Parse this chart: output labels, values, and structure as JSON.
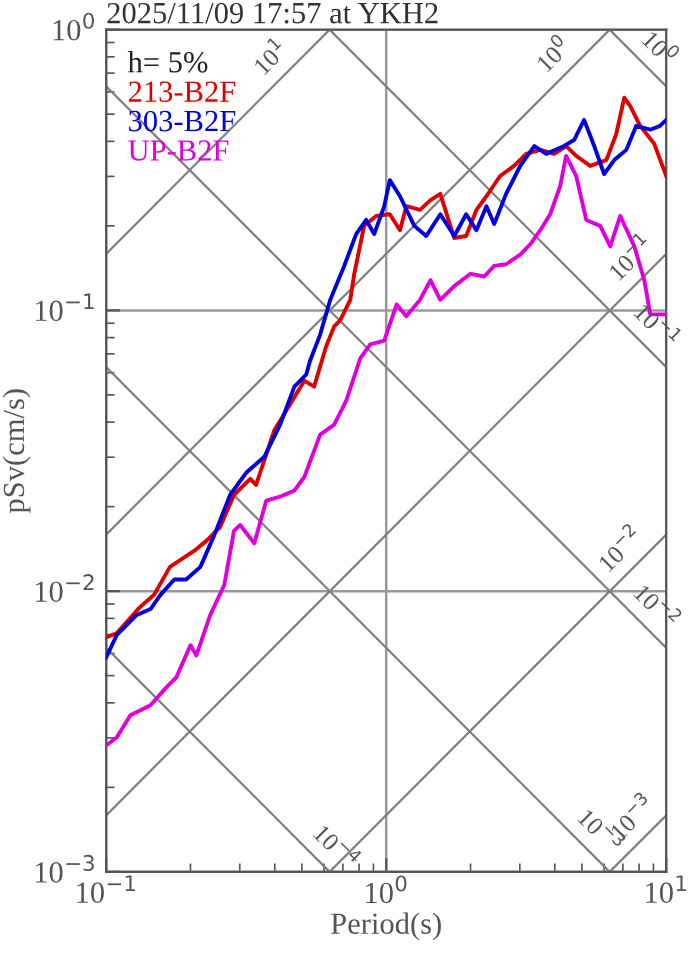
{
  "chart_data": {
    "type": "line",
    "title": "2025/11/09 17:57 at YKH2",
    "xlabel": "Period(s)",
    "ylabel": "pSv(cm/s)",
    "legend_title": "h= 5%",
    "legend": "top left",
    "log": "xy",
    "grid": true,
    "xlim": [
      0.1,
      10
    ],
    "ylim": [
      0.001,
      1
    ],
    "xticks": [
      {
        "value": 0.1,
        "label": "10$^{−1}$"
      },
      {
        "value": 1,
        "label": "10$^{0}$"
      },
      {
        "value": 10,
        "label": "10$^{1}$"
      }
    ],
    "yticks": [
      {
        "value": 0.001,
        "label": "10$^{−3}$"
      },
      {
        "value": 0.01,
        "label": "10$^{−2}$"
      },
      {
        "value": 0.1,
        "label": "10$^{−1}$"
      },
      {
        "value": 1,
        "label": "10$^{0}$"
      }
    ],
    "series": [
      {
        "color": "#808080",
        "x": [
          0.1,
          0.628
        ],
        "values": [
          0.159,
          1
        ]
      },
      {
        "color": "#808080",
        "x": [
          0.1,
          6.28
        ],
        "values": [
          0.0159,
          1
        ]
      },
      {
        "color": "#808080",
        "x": [
          0.1,
          10
        ],
        "values": [
          0.00159,
          0.159
        ]
      },
      {
        "color": "#808080",
        "x": [
          0.628,
          10
        ],
        "values": [
          0.001,
          0.0159
        ]
      },
      {
        "color": "#808080",
        "x": [
          6.28,
          10
        ],
        "values": [
          0.001,
          0.00159
        ]
      },
      {
        "color": "#808080",
        "x": [
          6.28,
          10
        ],
        "values": [
          1,
          0.628
        ]
      },
      {
        "color": "#808080",
        "x": [
          0.628,
          10
        ],
        "values": [
          1,
          0.0628
        ]
      },
      {
        "color": "#808080",
        "x": [
          0.1,
          10
        ],
        "values": [
          0.628,
          0.00628
        ]
      },
      {
        "color": "#808080",
        "x": [
          0.1,
          6.28
        ],
        "values": [
          0.0628,
          0.001
        ]
      },
      {
        "color": "#808080",
        "x": [
          0.1,
          0.628
        ],
        "values": [
          0.00628,
          0.001
        ]
      },
      {
        "name": "213-B2F",
        "color": "#dd0000",
        "x": [
          0.1,
          0.109,
          0.132,
          0.148,
          0.169,
          0.206,
          0.228,
          0.255,
          0.286,
          0.327,
          0.343,
          0.398,
          0.44,
          0.51,
          0.553,
          0.61,
          0.652,
          0.685,
          0.744,
          0.769,
          0.834,
          0.921,
          1.03,
          1.12,
          1.18,
          1.32,
          1.44,
          1.56,
          1.75,
          1.93,
          2.1,
          2.28,
          2.55,
          2.86,
          3.16,
          3.55,
          3.98,
          4.39,
          4.77,
          5.35,
          6.11,
          6.63,
          7.08,
          7.43,
          8.07,
          9.06,
          10
        ],
        "values": [
          0.00685,
          0.00708,
          0.00877,
          0.00968,
          0.0122,
          0.0139,
          0.0151,
          0.0169,
          0.022,
          0.0251,
          0.0239,
          0.0373,
          0.044,
          0.0562,
          0.0535,
          0.0744,
          0.0877,
          0.0921,
          0.109,
          0.135,
          0.2,
          0.217,
          0.22,
          0.193,
          0.235,
          0.228,
          0.247,
          0.26,
          0.181,
          0.184,
          0.228,
          0.255,
          0.301,
          0.327,
          0.361,
          0.373,
          0.361,
          0.385,
          0.355,
          0.327,
          0.343,
          0.425,
          0.572,
          0.535,
          0.454,
          0.392,
          0.301
        ]
      },
      {
        "name": "303-B2F",
        "color": "#0000dd",
        "x": [
          0.1,
          0.109,
          0.128,
          0.144,
          0.156,
          0.175,
          0.193,
          0.217,
          0.243,
          0.277,
          0.316,
          0.367,
          0.418,
          0.47,
          0.518,
          0.535,
          0.581,
          0.631,
          0.708,
          0.781,
          0.848,
          0.906,
          0.984,
          1.03,
          1.12,
          1.26,
          1.39,
          1.56,
          1.75,
          1.93,
          2.1,
          2.28,
          2.43,
          2.68,
          3.01,
          3.38,
          3.73,
          4.32,
          4.69,
          5.09,
          5.53,
          6.0,
          6.52,
          7.2,
          7.81,
          8.77,
          9.5,
          10
        ],
        "values": [
          0.00581,
          0.00697,
          0.0082,
          0.00863,
          0.00968,
          0.011,
          0.011,
          0.0122,
          0.0158,
          0.022,
          0.0264,
          0.0301,
          0.0392,
          0.0535,
          0.0591,
          0.0663,
          0.082,
          0.109,
          0.144,
          0.187,
          0.21,
          0.187,
          0.235,
          0.291,
          0.255,
          0.2,
          0.184,
          0.22,
          0.184,
          0.22,
          0.193,
          0.235,
          0.203,
          0.26,
          0.327,
          0.385,
          0.361,
          0.385,
          0.405,
          0.477,
          0.385,
          0.306,
          0.343,
          0.373,
          0.454,
          0.44,
          0.454,
          0.477
        ]
      },
      {
        "name": "UP-B2F",
        "color": "#dd00dd",
        "x": [
          0.1,
          0.109,
          0.122,
          0.144,
          0.164,
          0.178,
          0.2,
          0.21,
          0.235,
          0.264,
          0.286,
          0.301,
          0.338,
          0.373,
          0.418,
          0.47,
          0.51,
          0.581,
          0.652,
          0.72,
          0.808,
          0.877,
          0.984,
          1.09,
          1.18,
          1.32,
          1.44,
          1.56,
          1.75,
          2.0,
          2.24,
          2.43,
          2.68,
          3.01,
          3.27,
          3.55,
          3.85,
          4.18,
          4.39,
          4.77,
          5.18,
          5.81,
          6.31,
          6.85,
          7.69,
          8.35,
          8.77,
          10
        ],
        "values": [
          0.00282,
          0.00301,
          0.00361,
          0.00392,
          0.00454,
          0.00493,
          0.00641,
          0.0059,
          0.0082,
          0.0105,
          0.0164,
          0.0172,
          0.0148,
          0.021,
          0.0217,
          0.0228,
          0.0255,
          0.0361,
          0.0392,
          0.0477,
          0.0675,
          0.0757,
          0.0781,
          0.105,
          0.0953,
          0.109,
          0.128,
          0.109,
          0.122,
          0.135,
          0.132,
          0.144,
          0.146,
          0.158,
          0.172,
          0.193,
          0.22,
          0.277,
          0.355,
          0.301,
          0.21,
          0.2,
          0.169,
          0.217,
          0.169,
          0.128,
          0.0968,
          0.0968
        ]
      }
    ],
    "annotations": [
      {
        "text": "10$^{1}$",
        "x": 0.44,
        "y": 0.7
      },
      {
        "text": "10$^{0}$",
        "x": 4.5,
        "y": 0.716
      },
      {
        "text": "10$^{0}$",
        "x": 8.3,
        "y": 0.757
      },
      {
        "text": "10$^{−1}$",
        "x": 8.5,
        "y": 0.135
      },
      {
        "text": "10$^{−1}$",
        "x": 8.1,
        "y": 0.0776
      },
      {
        "text": "10$^{−2}$",
        "x": 7.8,
        "y": 0.0124
      },
      {
        "text": "10$^{−2}$",
        "x": 8.1,
        "y": 0.00776
      },
      {
        "text": "10$^{−3}$",
        "x": 5.1,
        "y": 0.00123
      },
      {
        "text": "10$^{−3}$",
        "x": 8.6,
        "y": 0.00137
      },
      {
        "text": "10$^{−4}$",
        "x": 0.58,
        "y": 0.00108
      }
    ]
  }
}
